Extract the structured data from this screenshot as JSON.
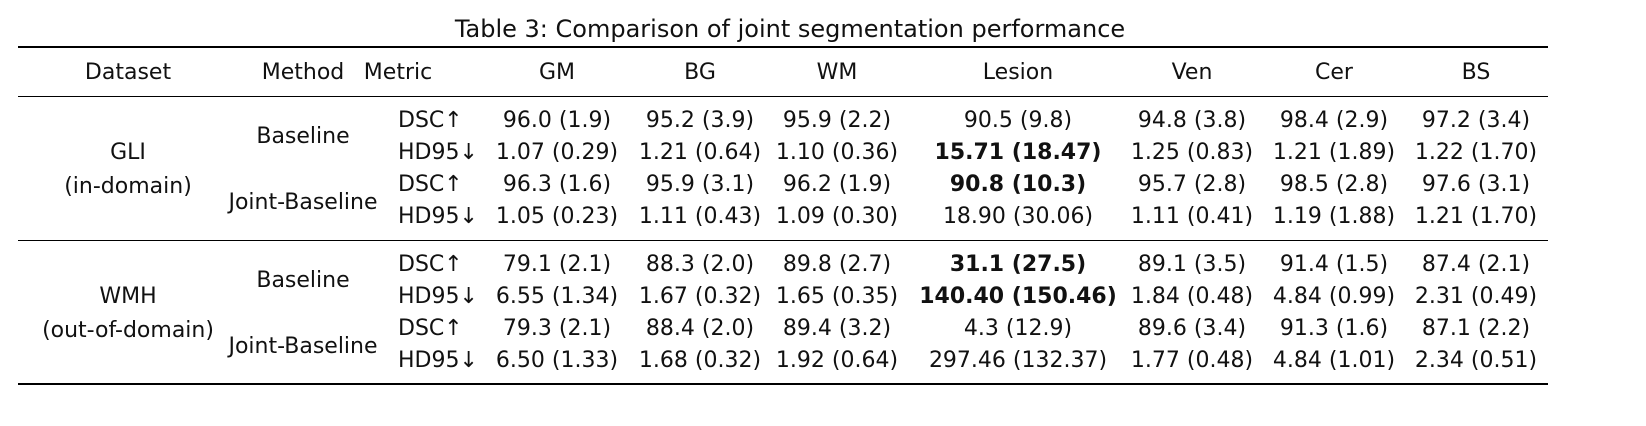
{
  "caption": "Table 3: Comparison of joint segmentation performance",
  "header": [
    "Dataset",
    "Method",
    "Metric",
    "GM",
    "BG",
    "WM",
    "Lesion",
    "Ven",
    "Cer",
    "BS"
  ],
  "groups": [
    {
      "dataset": [
        "GLI",
        "(in-domain)"
      ],
      "methods": [
        {
          "method": "Baseline",
          "rows": [
            {
              "metric": "DSC↑",
              "values": [
                "96.0 (1.9)",
                "95.2 (3.9)",
                "95.9 (2.2)",
                "90.5 (9.8)",
                "94.8 (3.8)",
                "98.4 (2.9)",
                "97.2 (3.4)"
              ]
            },
            {
              "metric": "HD95↓",
              "values": [
                "1.07 (0.29)",
                "1.21 (0.64)",
                "1.10 (0.36)",
                "15.71 (18.47)",
                "1.25 (0.83)",
                "1.21 (1.89)",
                "1.22 (1.70)"
              ],
              "bold": [
                3
              ]
            }
          ]
        },
        {
          "method": "Joint-Baseline",
          "rows": [
            {
              "metric": "DSC↑",
              "values": [
                "96.3 (1.6)",
                "95.9 (3.1)",
                "96.2 (1.9)",
                "90.8 (10.3)",
                "95.7 (2.8)",
                "98.5 (2.8)",
                "97.6 (3.1)"
              ],
              "bold": [
                3
              ]
            },
            {
              "metric": "HD95↓",
              "values": [
                "1.05 (0.23)",
                "1.11 (0.43)",
                "1.09 (0.30)",
                "18.90 (30.06)",
                "1.11 (0.41)",
                "1.19 (1.88)",
                "1.21 (1.70)"
              ]
            }
          ]
        }
      ]
    },
    {
      "dataset": [
        "WMH",
        "(out-of-domain)"
      ],
      "methods": [
        {
          "method": "Baseline",
          "rows": [
            {
              "metric": "DSC↑",
              "values": [
                "79.1 (2.1)",
                "88.3 (2.0)",
                "89.8 (2.7)",
                "31.1 (27.5)",
                "89.1 (3.5)",
                "91.4 (1.5)",
                "87.4 (2.1)"
              ],
              "bold": [
                3
              ]
            },
            {
              "metric": "HD95↓",
              "values": [
                "6.55 (1.34)",
                "1.67 (0.32)",
                "1.65 (0.35)",
                "140.40 (150.46)",
                "1.84 (0.48)",
                "4.84 (0.99)",
                "2.31 (0.49)"
              ],
              "bold": [
                3
              ]
            }
          ]
        },
        {
          "method": "Joint-Baseline",
          "rows": [
            {
              "metric": "DSC↑",
              "values": [
                "79.3 (2.1)",
                "88.4 (2.0)",
                "89.4 (3.2)",
                "4.3 (12.9)",
                "89.6 (3.4)",
                "91.3 (1.6)",
                "87.1 (2.2)"
              ]
            },
            {
              "metric": "HD95↓",
              "values": [
                "6.50 (1.33)",
                "1.68 (0.32)",
                "1.92 (0.64)",
                "297.46 (132.37)",
                "1.77 (0.48)",
                "4.84 (1.01)",
                "2.34 (0.51)"
              ]
            }
          ]
        }
      ]
    }
  ]
}
